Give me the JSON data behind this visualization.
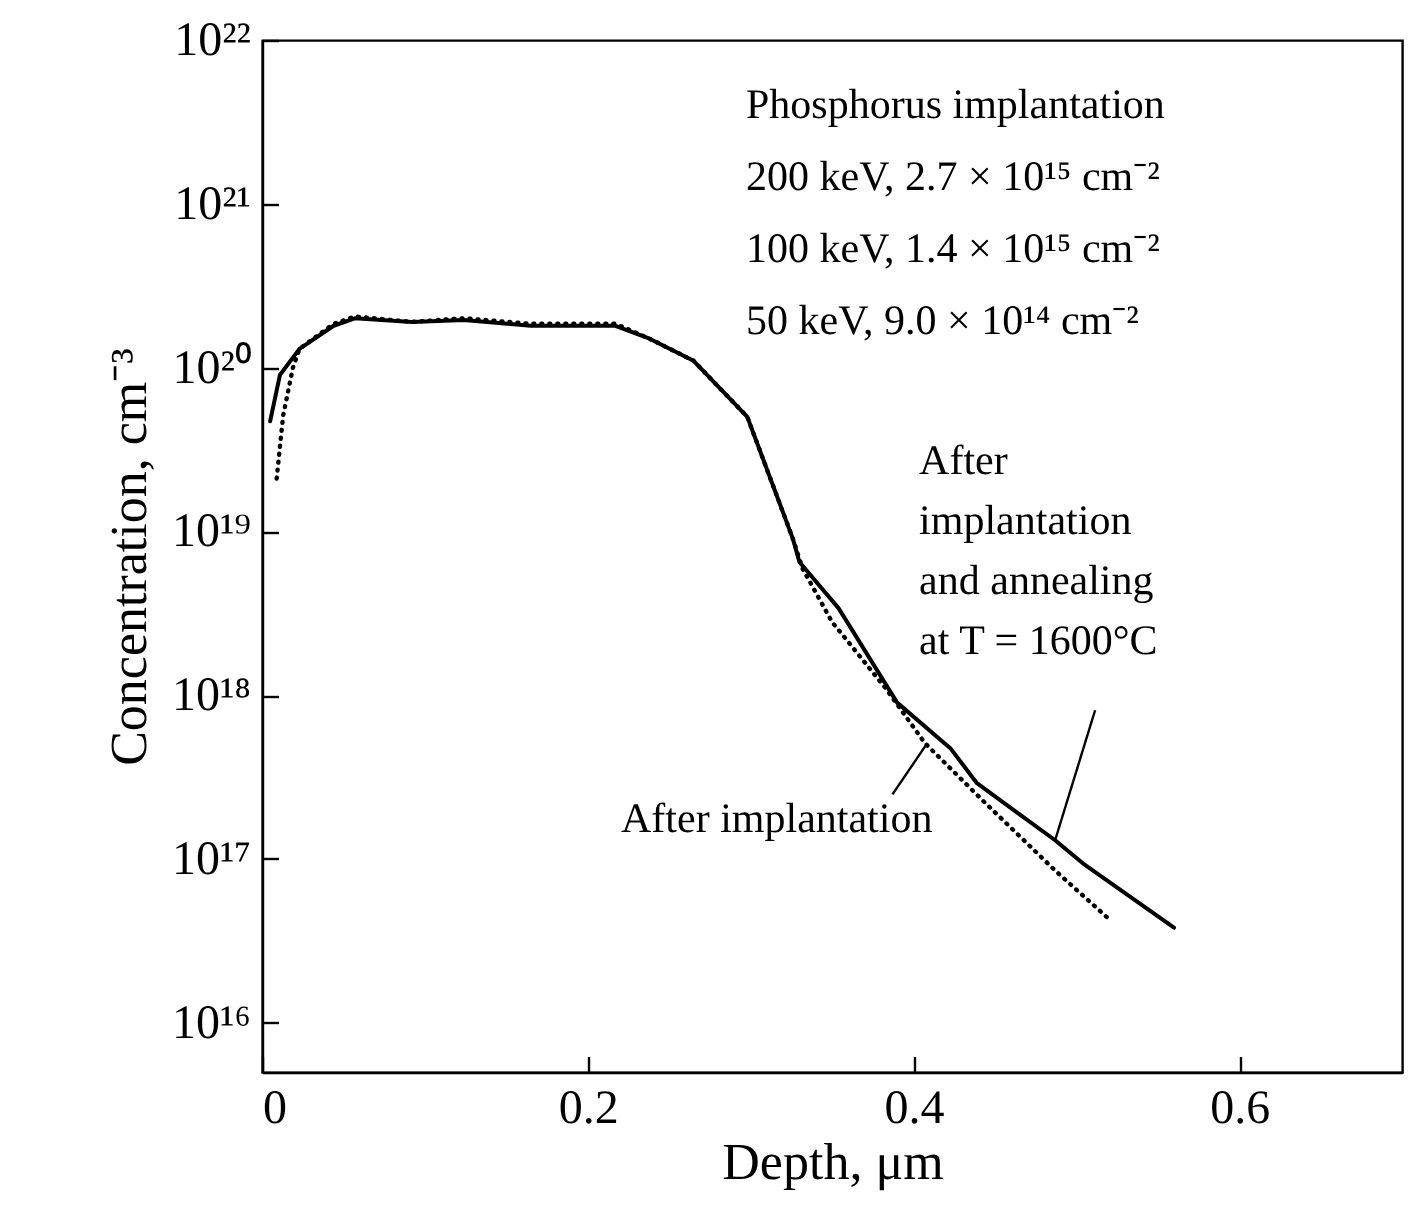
{
  "chart_data": {
    "type": "line",
    "xlabel": "Depth, μm",
    "ylabel": "Concentration, cm⁻³",
    "log": "y",
    "grid": false,
    "marker": "none",
    "xlim": [
      0,
      0.7
    ],
    "xticks": [
      0,
      0.2,
      0.4,
      0.6
    ],
    "ylim": [
      5000000000000000.0,
      1e+22
    ],
    "yticks": [
      {
        "value": 1e+16,
        "label": "10¹⁶"
      },
      {
        "value": 1e+17,
        "label": "10¹⁷"
      },
      {
        "value": 1e+18,
        "label": "10¹⁸"
      },
      {
        "value": 1e+19,
        "label": "10¹⁹"
      },
      {
        "value": 1e+20,
        "label": "10²⁰"
      },
      {
        "value": 1e+21,
        "label": "10²¹"
      },
      {
        "value": 1e+22,
        "label": "10²²"
      }
    ],
    "series": [
      {
        "color": "#000000",
        "line_style": "solid",
        "x": [
          0.005,
          0.011,
          0.023,
          0.044,
          0.057,
          0.092,
          0.124,
          0.165,
          0.217,
          0.238,
          0.265,
          0.298,
          0.326,
          0.33,
          0.354,
          0.39,
          0.423,
          0.439,
          0.487,
          0.504,
          0.56
        ],
        "values": [
          4.7e+19,
          9e+19,
          1.3e+20,
          1.8e+20,
          2e+20,
          1.9e+20,
          1.95e+20,
          1.8e+20,
          1.8e+20,
          1.5e+20,
          1.1e+20,
          5e+19,
          9e+18,
          6.5e+18,
          3.4e+18,
          9e+17,
          4.7e+17,
          2.9e+17,
          1.3e+17,
          9.4e+16,
          3.8e+16
        ]
      },
      {
        "color": "#000000",
        "line_style": "dotted",
        "x": [
          0.009,
          0.013,
          0.019,
          0.023,
          0.044,
          0.057,
          0.092,
          0.124,
          0.165,
          0.217,
          0.238,
          0.265,
          0.298,
          0.326,
          0.332,
          0.35,
          0.383,
          0.407,
          0.444,
          0.487,
          0.52
        ],
        "values": [
          2.1e+19,
          5.1e+19,
          1e+20,
          1.3e+20,
          1.85e+20,
          2.05e+20,
          1.9e+20,
          2e+20,
          1.85e+20,
          1.85e+20,
          1.5e+20,
          1.1e+20,
          5e+19,
          9e+18,
          5.9e+18,
          2.8e+18,
          1.1e+18,
          5.1e+17,
          2.2e+17,
          8.5e+16,
          4.3e+16
        ]
      }
    ],
    "annotations": [
      "Phosphorus implantation",
      "200 keV, 2.7 × 10¹⁵ cm⁻²",
      "100 keV, 1.4 × 10¹⁵ cm⁻²",
      "50 keV, 9.0 × 10¹⁴ cm⁻²",
      {
        "text": "After implantation",
        "x": 0.408,
        "y": 5e+17
      },
      {
        "text": "After implantation and annealing at T = 1600°C",
        "x": 0.487,
        "y": 1.3e+17
      }
    ]
  }
}
